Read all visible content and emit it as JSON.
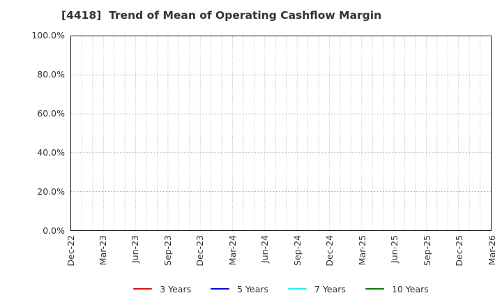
{
  "title": "[4418]  Trend of Mean of Operating Cashflow Margin",
  "chart_data": {
    "type": "line",
    "title": "[4418]  Trend of Mean of Operating Cashflow Margin",
    "x_tick_labels": [
      "Dec-22",
      "Mar-23",
      "Jun-23",
      "Sep-23",
      "Dec-23",
      "Mar-24",
      "Jun-24",
      "Sep-24",
      "Dec-24",
      "Mar-25",
      "Jun-25",
      "Sep-25",
      "Dec-25",
      "Mar-26"
    ],
    "y_tick_labels": [
      "0.0%",
      "20.0%",
      "40.0%",
      "60.0%",
      "80.0%",
      "100.0%"
    ],
    "ylim": [
      0,
      100
    ],
    "y_tick_step_percent": 20,
    "x_minor_gridline_intervals": 39,
    "x_label_every_n_gridlines": 3,
    "grid": "dotted",
    "legend_position": "bottom-center",
    "series": [
      {
        "name": "3 Years",
        "color": "#ff0000",
        "values": []
      },
      {
        "name": "5 Years",
        "color": "#0000ff",
        "values": []
      },
      {
        "name": "7 Years",
        "color": "#00ffff",
        "values": []
      },
      {
        "name": "10 Years",
        "color": "#008000",
        "values": []
      }
    ]
  },
  "layout_colors": {
    "background": "#ffffff",
    "title_text": "#333333",
    "tick_text": "#333333",
    "grid_line": "#ababab",
    "spine": "#1a1a1a"
  }
}
